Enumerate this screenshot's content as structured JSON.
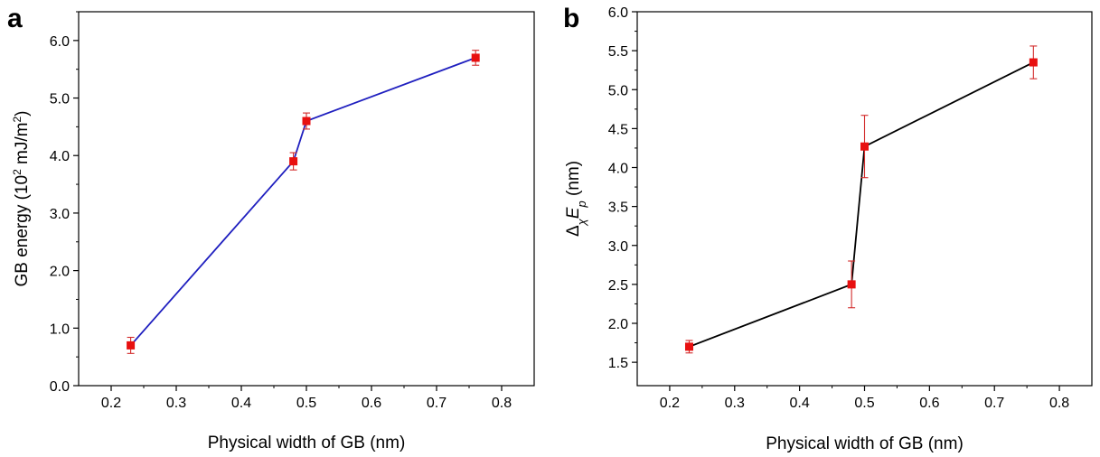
{
  "panels": {
    "a": {
      "label": "a"
    },
    "b": {
      "label": "b"
    }
  },
  "chart_data": [
    {
      "type": "line",
      "panel": "a",
      "xlabel": "Physical width of GB (nm)",
      "ylabel": "GB energy (10",
      "ylabel_sup": "2",
      "ylabel_unit": " mJ/m",
      "ylabel_unit_sup": "2",
      "ylabel_close": ")",
      "xlim": [
        0.15,
        0.85
      ],
      "ylim": [
        0.0,
        6.5
      ],
      "xticks": [
        0.2,
        0.3,
        0.4,
        0.5,
        0.6,
        0.7,
        0.8
      ],
      "xtick_labels": [
        "0.2",
        "0.3",
        "0.4",
        "0.5",
        "0.6",
        "0.7",
        "0.8"
      ],
      "yticks": [
        0.0,
        1.0,
        2.0,
        3.0,
        4.0,
        5.0,
        6.0
      ],
      "ytick_labels": [
        "0.0",
        "1.0",
        "2.0",
        "3.0",
        "4.0",
        "5.0",
        "6.0"
      ],
      "grid": false,
      "line_color": "#1f1fbf",
      "marker_color": "#e81010",
      "errorbar_color": "#d22a2a",
      "series": [
        {
          "x": [
            0.23,
            0.48,
            0.5,
            0.76
          ],
          "y": [
            0.7,
            3.9,
            4.6,
            5.7
          ],
          "yerr": [
            0.14,
            0.15,
            0.14,
            0.13
          ]
        }
      ]
    },
    {
      "type": "line",
      "panel": "b",
      "xlabel": "Physical width of GB (nm)",
      "ylabel_delta": "Δ",
      "ylabel_sub": "χ",
      "ylabel_e": "E",
      "ylabel_p": "p",
      "ylabel_rest": " (nm)",
      "xlim": [
        0.15,
        0.85
      ],
      "ylim": [
        1.2,
        6.0
      ],
      "xticks": [
        0.2,
        0.3,
        0.4,
        0.5,
        0.6,
        0.7,
        0.8
      ],
      "xtick_labels": [
        "0.2",
        "0.3",
        "0.4",
        "0.5",
        "0.6",
        "0.7",
        "0.8"
      ],
      "yticks": [
        1.5,
        2.0,
        2.5,
        3.0,
        3.5,
        4.0,
        4.5,
        5.0,
        5.5,
        6.0
      ],
      "ytick_labels": [
        "1.5",
        "2.0",
        "2.5",
        "3.0",
        "3.5",
        "4.0",
        "4.5",
        "5.0",
        "5.5",
        "6.0"
      ],
      "grid": false,
      "line_color": "#000000",
      "marker_color": "#e81010",
      "errorbar_color": "#d22a2a",
      "series": [
        {
          "x": [
            0.23,
            0.48,
            0.5,
            0.76
          ],
          "y": [
            1.7,
            2.5,
            4.27,
            5.35
          ],
          "yerr": [
            0.08,
            0.3,
            0.4,
            0.21
          ]
        }
      ]
    }
  ]
}
